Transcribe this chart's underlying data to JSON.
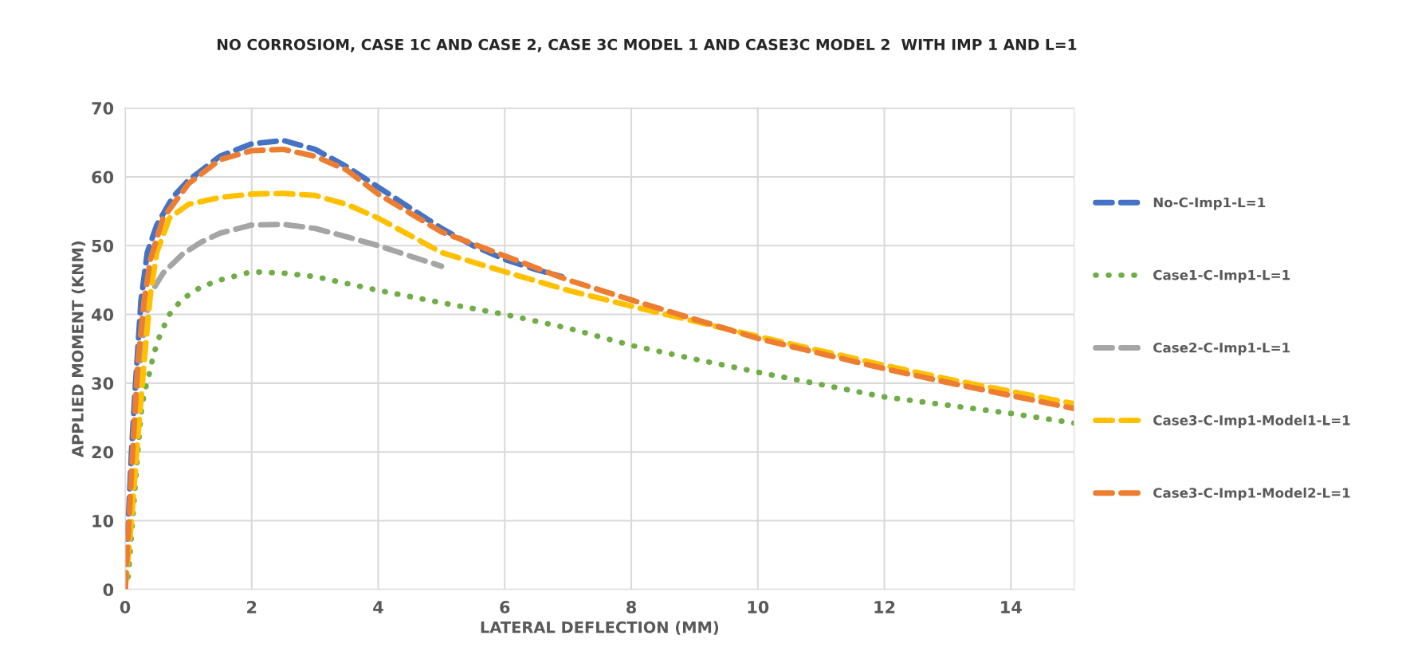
{
  "chart_data": {
    "type": "line",
    "title": "NO CORROSIOM, CASE 1C AND CASE 2, CASE 3C MODEL 1 AND CASE3C MODEL 2  WITH IMP 1 AND L=1",
    "xlabel": "LATERAL DEFLECTION (MM)",
    "ylabel": "APPLIED MOMENT (KNM)",
    "xlim": [
      0,
      15
    ],
    "xticks": [
      0,
      2,
      4,
      6,
      8,
      10,
      12,
      14
    ],
    "ylim": [
      0,
      70
    ],
    "yticks": [
      0,
      10,
      20,
      30,
      40,
      50,
      60,
      70
    ],
    "grid": true,
    "legend": "right",
    "marker": "none",
    "series": [
      {
        "name": "No-C-Imp1-L=1",
        "color": "#4472c4",
        "line_style": "dashed",
        "x": [
          0,
          0.05,
          0.1,
          0.15,
          0.2,
          0.25,
          0.35,
          0.5,
          0.75,
          1,
          1.5,
          2,
          2.5,
          3,
          3.5,
          4,
          4.5,
          5,
          5.5,
          6,
          6.5,
          6.9
        ],
        "values": [
          0,
          10,
          20,
          28,
          35,
          42,
          49,
          53,
          57,
          59.5,
          63,
          64.8,
          65.3,
          64,
          61.5,
          58.5,
          55.5,
          52.5,
          50,
          48,
          46.5,
          45.5
        ]
      },
      {
        "name": "Case1-C-Imp1-L=1",
        "color": "#70ad47",
        "line_style": "dotted",
        "x": [
          0,
          0.05,
          0.1,
          0.15,
          0.2,
          0.25,
          0.3,
          0.38,
          0.45,
          0.55,
          0.7,
          0.9,
          1.2,
          1.5,
          2,
          2.5,
          3,
          3.5,
          4,
          5,
          6,
          7,
          8,
          9,
          10,
          11,
          12,
          13,
          14,
          15
        ],
        "values": [
          0,
          2,
          8,
          14,
          20,
          25.5,
          28.5,
          31.3,
          34.2,
          37,
          40,
          42.2,
          44,
          45,
          46.2,
          46,
          45.5,
          44.5,
          43.5,
          41.7,
          40,
          38,
          35.5,
          33.5,
          31.6,
          29.8,
          28,
          26.8,
          25.6,
          24.2
        ]
      },
      {
        "name": "Case2-C-Imp1-L=1",
        "color": "#a5a5a5",
        "line_style": "dashed",
        "x": [
          0,
          0.1,
          0.2,
          0.3,
          0.4,
          0.6,
          0.9,
          1.2,
          1.5,
          2,
          2.5,
          3,
          3.5,
          4,
          4.5,
          5
        ],
        "values": [
          0,
          15,
          30,
          38,
          43,
          46,
          48.7,
          50.5,
          51.8,
          53,
          53.1,
          52.5,
          51.3,
          50,
          48.5,
          47
        ]
      },
      {
        "name": "Case3-C-Imp1-Model1-L=1",
        "color": "#ffc000",
        "line_style": "dashed",
        "x": [
          0,
          0.1,
          0.2,
          0.3,
          0.4,
          0.5,
          0.7,
          1,
          1.5,
          2,
          2.5,
          3,
          3.5,
          4,
          4.5,
          5,
          6,
          7,
          8,
          9,
          10,
          11,
          12,
          13,
          14,
          15
        ],
        "values": [
          0,
          10,
          22,
          33,
          43,
          49,
          54,
          56,
          57,
          57.5,
          57.6,
          57.3,
          56,
          54,
          51.5,
          49,
          46.2,
          43.5,
          41.2,
          39,
          36.8,
          34.7,
          32.6,
          30.6,
          28.8,
          27
        ]
      },
      {
        "name": "Case3-C-Imp1-Model2-L=1",
        "color": "#ed7d31",
        "line_style": "dashed",
        "x": [
          0,
          0.05,
          0.1,
          0.15,
          0.2,
          0.3,
          0.4,
          0.6,
          1,
          1.5,
          2,
          2.5,
          3,
          3.5,
          4,
          5,
          6,
          7,
          8,
          9,
          10,
          11,
          12,
          13,
          14,
          15
        ],
        "values": [
          0,
          8,
          17,
          25,
          33,
          42,
          48,
          54,
          59,
          62.5,
          63.8,
          64,
          63,
          61,
          57.5,
          52,
          48.5,
          45,
          42.1,
          39.3,
          36.5,
          34.3,
          32.1,
          30.1,
          28.2,
          26.3
        ]
      }
    ]
  }
}
